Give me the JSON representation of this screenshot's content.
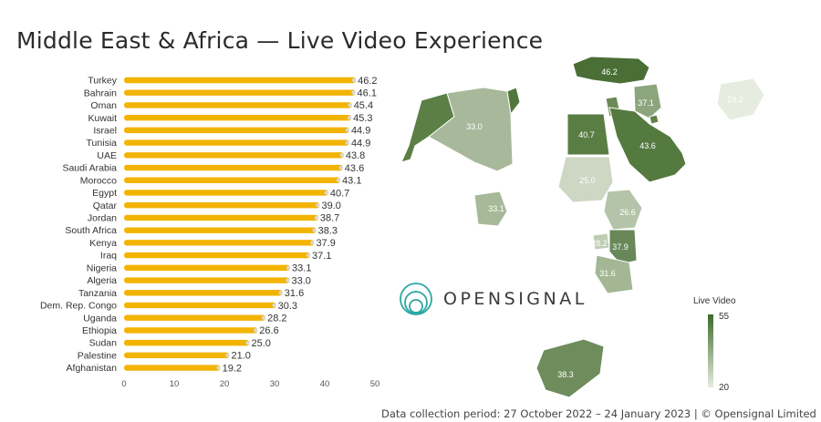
{
  "title": "Middle East & Africa — Live Video Experience",
  "brand": "OPENSIGNAL",
  "footer": "Data collection period: 27 October 2022 – 24 January 2023  |  © Opensignal Limited",
  "legend": {
    "title": "Live Video",
    "max_label": "55",
    "min_label": "20"
  },
  "colors": {
    "bar": "#F2B400",
    "map_dark": "#3f6a2c",
    "map_light": "#e6ece0"
  },
  "chart_data": {
    "type": "bar",
    "orientation": "horizontal",
    "categories": [
      "Turkey",
      "Bahrain",
      "Oman",
      "Kuwait",
      "Israel",
      "Tunisia",
      "UAE",
      "Saudi Arabia",
      "Morocco",
      "Egypt",
      "Qatar",
      "Jordan",
      "South Africa",
      "Kenya",
      "Iraq",
      "Nigeria",
      "Algeria",
      "Tanzania",
      "Dem. Rep. Congo",
      "Uganda",
      "Ethiopia",
      "Sudan",
      "Palestine",
      "Afghanistan"
    ],
    "values": [
      46.2,
      46.1,
      45.4,
      45.3,
      44.9,
      44.9,
      43.8,
      43.6,
      43.1,
      40.7,
      39.0,
      38.7,
      38.3,
      37.9,
      37.1,
      33.1,
      33.0,
      31.6,
      30.3,
      28.2,
      26.6,
      25.0,
      21.0,
      19.2
    ],
    "value_labels": [
      "46.2",
      "46.1",
      "45.4",
      "45.3",
      "44.9",
      "44.9",
      "43.8",
      "43.6",
      "43.1",
      "40.7",
      "39.0",
      "38.7",
      "38.3",
      "37.9",
      "37.1",
      "33.1",
      "33.0",
      "31.6",
      "30.3",
      "28.2",
      "26.6",
      "25.0",
      "21.0",
      "19.2"
    ],
    "xlim": [
      0,
      50
    ],
    "xticks": [
      "0",
      "10",
      "20",
      "30",
      "40",
      "50"
    ],
    "grid": false
  },
  "map_labels": [
    {
      "country": "Turkey",
      "value": "46.2"
    },
    {
      "country": "Algeria",
      "value": "33.0"
    },
    {
      "country": "Iraq",
      "value": "37.1"
    },
    {
      "country": "Egypt",
      "value": "40.7"
    },
    {
      "country": "Saudi Arabia",
      "value": "43.6"
    },
    {
      "country": "Sudan",
      "value": "25.0"
    },
    {
      "country": "Ethiopia",
      "value": "26.6"
    },
    {
      "country": "Nigeria",
      "value": "33.1"
    },
    {
      "country": "Kenya",
      "value": "37.9"
    },
    {
      "country": "Uganda",
      "value": "28.2"
    },
    {
      "country": "Tanzania",
      "value": "31.6"
    },
    {
      "country": "South Africa",
      "value": "38.3"
    },
    {
      "country": "Afghanistan",
      "value": "19.2"
    }
  ]
}
